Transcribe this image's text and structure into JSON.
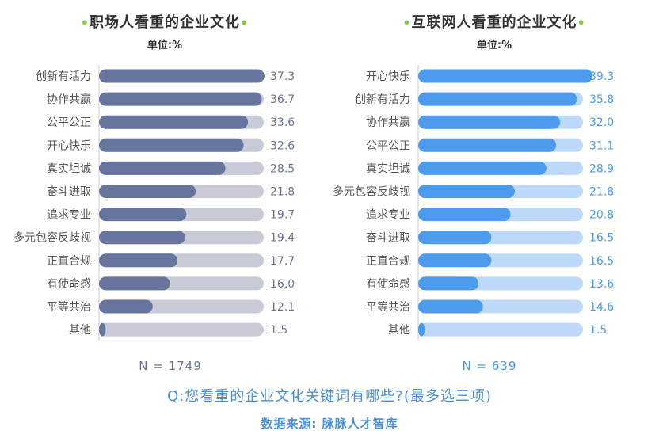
{
  "question": "Q:您看重的企业文化关键词有哪些?(最多选三项)",
  "source": "数据来源: 脉脉人才智库",
  "colors": {
    "left_bar": "#67749e",
    "left_track": "#c8cbd6",
    "left_text": "#67749e",
    "right_bar": "#4d9bec",
    "right_track": "#bcd9fa",
    "right_text": "#4d9bec",
    "accent_dot": "#8dc63f"
  },
  "chart_data": [
    {
      "type": "bar",
      "orientation": "horizontal",
      "title": "职场人看重的企业文化",
      "unit": "单位:%",
      "n_label": "N = 1749",
      "xlim": [
        0,
        100
      ],
      "categories": [
        "创新有活力",
        "协作共赢",
        "公平公正",
        "开心快乐",
        "真实坦诚",
        "奋斗进取",
        "追求专业",
        "多元包容反歧视",
        "正直合规",
        "有使命感",
        "平等共治",
        "其他"
      ],
      "values": [
        37.3,
        36.7,
        33.6,
        32.6,
        28.5,
        21.8,
        19.7,
        19.4,
        17.7,
        16.0,
        12.1,
        1.5
      ],
      "value_labels": [
        "37.3",
        "36.7",
        "33.6",
        "32.6",
        "28.5",
        "21.8",
        "19.7",
        "19.4",
        "17.7",
        "16.0",
        "12.1",
        "1.5"
      ]
    },
    {
      "type": "bar",
      "orientation": "horizontal",
      "title": "互联网人看重的企业文化",
      "unit": "单位:%",
      "n_label": "N = 639",
      "xlim": [
        0,
        100
      ],
      "categories": [
        "开心快乐",
        "创新有活力",
        "协作共赢",
        "公平公正",
        "真实坦诚",
        "多元包容反歧视",
        "追求专业",
        "奋斗进取",
        "正直合规",
        "有使命感",
        "平等共治",
        "其他"
      ],
      "values": [
        39.3,
        35.8,
        32.0,
        31.1,
        28.9,
        21.8,
        20.8,
        16.5,
        16.5,
        13.6,
        14.6,
        1.5
      ],
      "value_labels": [
        "39.3",
        "35.8",
        "32.0",
        "31.1",
        "28.9",
        "21.8",
        "20.8",
        "16.5",
        "16.5",
        "13.6",
        "14.6",
        "1.5"
      ]
    }
  ]
}
